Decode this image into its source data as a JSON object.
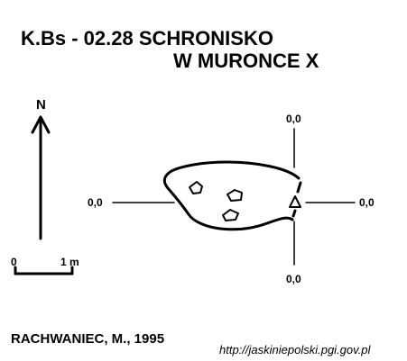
{
  "title": {
    "line1": "K.Bs - 02.28  SCHRONISKO",
    "line2": "W MURONCE X"
  },
  "compass": {
    "label": "N"
  },
  "scale_bar": {
    "start": "0",
    "end": "1 m"
  },
  "datum_labels": {
    "left": "0,0",
    "right": "0,0",
    "top": "0,0",
    "bottom": "0,0"
  },
  "author": "RACHWANIEC, M., 1995",
  "url": "http://jaskiniepolski.pgi.gov.pl"
}
